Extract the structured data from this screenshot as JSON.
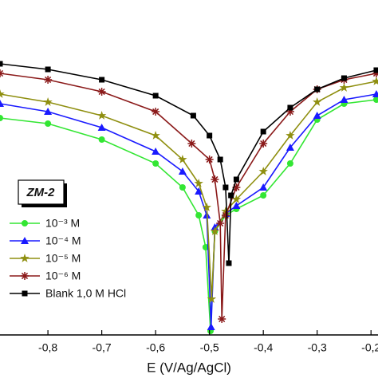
{
  "chart_data": {
    "type": "line",
    "x_label": "E (V/Ag/AgCl)",
    "annotation": "ZM-2",
    "xlim": [
      -0.889,
      -0.187
    ],
    "ylim": [
      -8.4,
      0
    ],
    "xticks": [
      {
        "value": -0.8,
        "label": "-0,8"
      },
      {
        "value": -0.7,
        "label": "-0,7"
      },
      {
        "value": -0.6,
        "label": "-0,6"
      },
      {
        "value": -0.5,
        "label": "-0,5"
      },
      {
        "value": -0.4,
        "label": "-0,4"
      },
      {
        "value": -0.3,
        "label": "-0,3"
      },
      {
        "value": -0.2,
        "label": "-0,2"
      }
    ],
    "series": [
      {
        "name": "10⁻³ M",
        "color": "#33e633",
        "marker": "circle",
        "x": [
          -0.889,
          -0.8,
          -0.7,
          -0.6,
          -0.55,
          -0.52,
          -0.507,
          -0.498,
          -0.49,
          -0.47,
          -0.45,
          -0.4,
          -0.35,
          -0.3,
          -0.25,
          -0.19
        ],
        "values": [
          -2.96,
          -3.1,
          -3.5,
          -4.1,
          -4.7,
          -5.4,
          -6.2,
          -8.3,
          -5.8,
          -5.4,
          -5.24,
          -4.9,
          -4.1,
          -3,
          -2.6,
          -2.5
        ]
      },
      {
        "name": "10⁻⁴ M",
        "color": "#1a1aff",
        "marker": "triangle",
        "x": [
          -0.889,
          -0.8,
          -0.7,
          -0.6,
          -0.55,
          -0.52,
          -0.505,
          -0.497,
          -0.49,
          -0.47,
          -0.45,
          -0.4,
          -0.35,
          -0.3,
          -0.25,
          -0.19
        ],
        "values": [
          -2.6,
          -2.8,
          -3.2,
          -3.8,
          -4.3,
          -4.8,
          -5.4,
          -8.2,
          -5.7,
          -5.36,
          -5.16,
          -4.7,
          -3.7,
          -2.9,
          -2.5,
          -2.36
        ]
      },
      {
        "name": "10⁻⁵ M",
        "color": "#8f8f10",
        "marker": "star",
        "x": [
          -0.889,
          -0.8,
          -0.7,
          -0.6,
          -0.55,
          -0.52,
          -0.505,
          -0.496,
          -0.49,
          -0.47,
          -0.45,
          -0.4,
          -0.35,
          -0.3,
          -0.25,
          -0.19
        ],
        "values": [
          -2.36,
          -2.56,
          -2.9,
          -3.4,
          -4,
          -4.6,
          -5.2,
          -7.5,
          -5.8,
          -5.3,
          -5,
          -4.3,
          -3.4,
          -2.56,
          -2.2,
          -2.04
        ]
      },
      {
        "name": "10⁻⁶ M",
        "color": "#8b1a1a",
        "marker": "asterisk",
        "x": [
          -0.889,
          -0.8,
          -0.7,
          -0.6,
          -0.533,
          -0.5,
          -0.49,
          -0.48,
          -0.477,
          -0.47,
          -0.45,
          -0.4,
          -0.35,
          -0.3,
          -0.25,
          -0.19
        ],
        "values": [
          -1.84,
          -2,
          -2.3,
          -2.8,
          -3.6,
          -4,
          -4.5,
          -5.6,
          -8,
          -5.4,
          -4.7,
          -3.6,
          -2.8,
          -2.24,
          -2,
          -1.84
        ]
      },
      {
        "name": "Blank 1,0 M HCl",
        "color": "#000000",
        "marker": "square",
        "x": [
          -0.889,
          -0.8,
          -0.7,
          -0.6,
          -0.53,
          -0.5,
          -0.48,
          -0.47,
          -0.464,
          -0.46,
          -0.45,
          -0.4,
          -0.35,
          -0.3,
          -0.25,
          -0.19
        ],
        "values": [
          -1.6,
          -1.74,
          -2,
          -2.4,
          -2.9,
          -3.4,
          -4,
          -4.7,
          -6.6,
          -4.9,
          -4.5,
          -3.3,
          -2.7,
          -2.24,
          -1.96,
          -1.76
        ]
      }
    ]
  }
}
